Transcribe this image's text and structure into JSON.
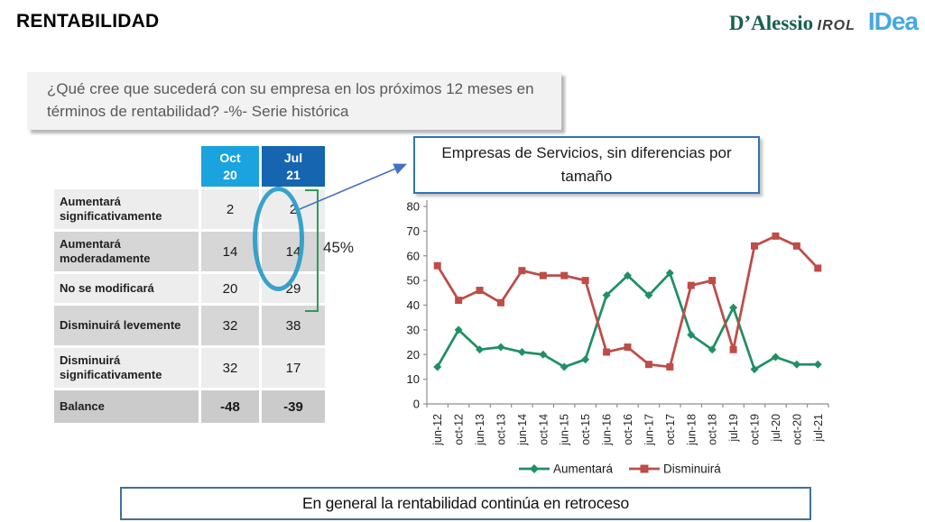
{
  "header": {
    "title": "RENTABILIDAD",
    "logos": {
      "dalessio": "D’Alessio",
      "irol": "IROL",
      "idea": "IDea"
    }
  },
  "question_box": {
    "text": "¿Qué cree que sucederá con su empresa en los próximos 12 meses en términos de rentabilidad? -%- Serie histórica"
  },
  "services_box": {
    "text": "Empresas de Servicios, sin diferencias por tamaño"
  },
  "annotation": {
    "bracket_label": "45%"
  },
  "table": {
    "col_headers": [
      {
        "month": "Oct",
        "year": "20"
      },
      {
        "month": "Jul",
        "year": "21"
      }
    ],
    "rows": [
      {
        "label": "Aumentará significativamente",
        "values": [
          "2",
          "2"
        ]
      },
      {
        "label": "Aumentará moderadamente",
        "values": [
          "14",
          "14"
        ]
      },
      {
        "label": "No se modificará",
        "values": [
          "20",
          "29"
        ]
      },
      {
        "label": "Disminuirá levemente",
        "values": [
          "32",
          "38"
        ]
      },
      {
        "label": "Disminuirá significativamente",
        "values": [
          "32",
          "17"
        ]
      },
      {
        "label": "Balance",
        "values": [
          "-48",
          "-39"
        ]
      }
    ]
  },
  "chart_data": {
    "type": "line",
    "title": "",
    "xlabel": "",
    "ylabel": "",
    "x": [
      "jun-12",
      "oct-12",
      "jun-13",
      "oct-13",
      "jun-14",
      "oct-14",
      "jun-15",
      "oct-15",
      "jun-16",
      "oct-16",
      "jun-17",
      "oct-17",
      "jun-18",
      "oct-18",
      "jul-19",
      "oct-19",
      "jul-20",
      "oct-20",
      "jul-21"
    ],
    "series": [
      {
        "name": "Aumentará",
        "color": "#218F65",
        "marker": "diamond",
        "values": [
          15,
          30,
          22,
          23,
          21,
          20,
          15,
          18,
          44,
          52,
          44,
          53,
          28,
          22,
          39,
          14,
          19,
          16,
          16
        ]
      },
      {
        "name": "Disminuirá",
        "color": "#BE4C48",
        "marker": "square",
        "values": [
          56,
          42,
          46,
          41,
          54,
          52,
          52,
          50,
          21,
          23,
          16,
          15,
          48,
          50,
          22,
          64,
          68,
          64,
          55
        ]
      }
    ],
    "ylim": [
      0,
      80
    ],
    "ytick_step": 10,
    "grid": false,
    "legend_position": "bottom"
  },
  "footer_box": {
    "text": "En general la rentabilidad continúa en retroceso"
  },
  "colors": {
    "header_oct": "#1AA3DE",
    "header_jul": "#1565B0",
    "bracket_green": "#2E9A59",
    "ellipse_blue": "#2D9EC8",
    "arrow_blue": "#4472C4",
    "box_border_blue": "#2E75B6",
    "footer_border_blue": "#41719C",
    "series_green": "#218F65",
    "series_red": "#BE4C48"
  }
}
